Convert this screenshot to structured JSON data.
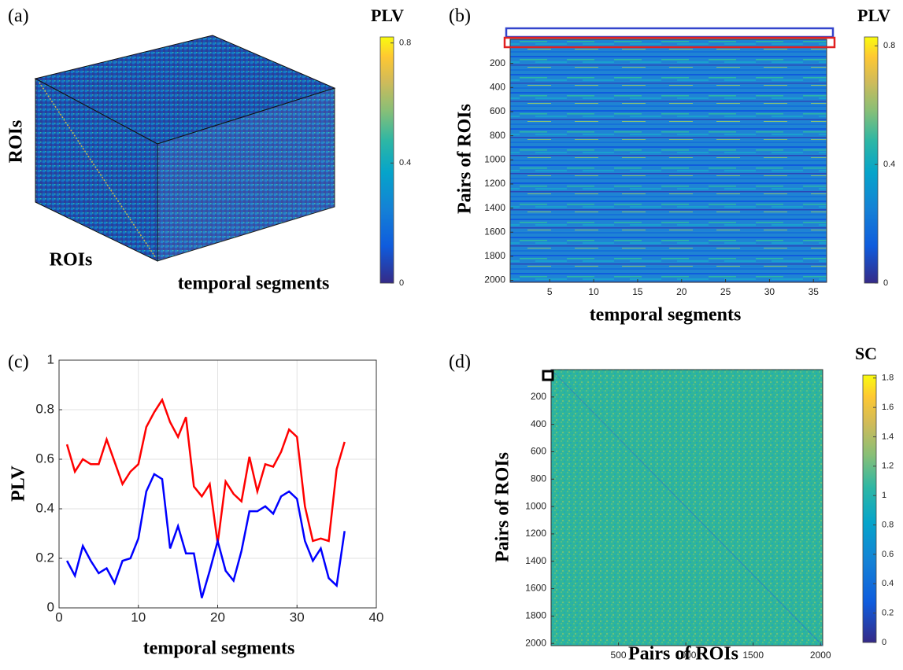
{
  "chart_data": [
    {
      "type": "cube",
      "label": "(a)",
      "xlabel": "temporal segments",
      "ylabel": "ROIs",
      "zlabel": "ROIs",
      "colorbar": {
        "title": "PLV",
        "lim": [
          0,
          0.82
        ],
        "ticks": [
          0,
          0.4,
          0.8
        ]
      }
    },
    {
      "type": "heatmap",
      "label": "(b)",
      "xlabel": "temporal segments",
      "ylabel": "Pairs of ROIs",
      "xlim": [
        0.5,
        36.5
      ],
      "ylim": [
        0,
        2016
      ],
      "xticks": [
        5,
        10,
        15,
        20,
        25,
        30,
        35
      ],
      "yticks": [
        200,
        400,
        600,
        800,
        1000,
        1200,
        1400,
        1600,
        1800,
        2000
      ],
      "colorbar": {
        "title": "PLV",
        "lim": [
          0,
          0.83
        ],
        "ticks": [
          0,
          0.4,
          0.8
        ]
      }
    },
    {
      "type": "line",
      "label": "(c)",
      "xlabel": "temporal segments",
      "ylabel": "PLV",
      "xlim": [
        0,
        40
      ],
      "ylim": [
        0,
        1
      ],
      "xticks": [
        0,
        10,
        20,
        30,
        40
      ],
      "yticks": [
        0,
        0.2,
        0.4,
        0.6,
        0.8,
        1
      ],
      "grid": true,
      "x": [
        1,
        2,
        3,
        4,
        5,
        6,
        7,
        8,
        9,
        10,
        11,
        12,
        13,
        14,
        15,
        16,
        17,
        18,
        19,
        20,
        21,
        22,
        23,
        24,
        25,
        26,
        27,
        28,
        29,
        30,
        31,
        32,
        33,
        34,
        35,
        36
      ],
      "series": [
        {
          "color": "#ff0000",
          "values": [
            0.66,
            0.55,
            0.6,
            0.58,
            0.58,
            0.68,
            0.59,
            0.5,
            0.55,
            0.58,
            0.73,
            0.79,
            0.84,
            0.75,
            0.69,
            0.77,
            0.49,
            0.45,
            0.5,
            0.26,
            0.51,
            0.46,
            0.43,
            0.61,
            0.47,
            0.58,
            0.57,
            0.63,
            0.72,
            0.69,
            0.41,
            0.27,
            0.28,
            0.27,
            0.56,
            0.67
          ]
        },
        {
          "color": "#0000ff",
          "values": [
            0.19,
            0.13,
            0.25,
            0.19,
            0.14,
            0.16,
            0.1,
            0.19,
            0.2,
            0.28,
            0.47,
            0.54,
            0.52,
            0.24,
            0.33,
            0.22,
            0.22,
            0.04,
            0.15,
            0.27,
            0.15,
            0.11,
            0.23,
            0.39,
            0.39,
            0.41,
            0.38,
            0.45,
            0.47,
            0.44,
            0.27,
            0.19,
            0.24,
            0.12,
            0.09,
            0.31
          ]
        }
      ]
    },
    {
      "type": "heatmap",
      "label": "(d)",
      "xlabel": "Pairs of ROIs",
      "ylabel": "Pairs of ROIs",
      "xlim": [
        0,
        2016
      ],
      "ylim": [
        0,
        2016
      ],
      "xticks": [
        500,
        1000,
        1500,
        2000
      ],
      "yticks": [
        200,
        400,
        600,
        800,
        1000,
        1200,
        1400,
        1600,
        1800,
        2000
      ],
      "colorbar": {
        "title": "SC",
        "lim": [
          0,
          1.82
        ],
        "ticks": [
          0,
          0.2,
          0.4,
          0.6,
          0.8,
          1,
          1.2,
          1.4,
          1.6,
          1.8
        ]
      }
    }
  ]
}
